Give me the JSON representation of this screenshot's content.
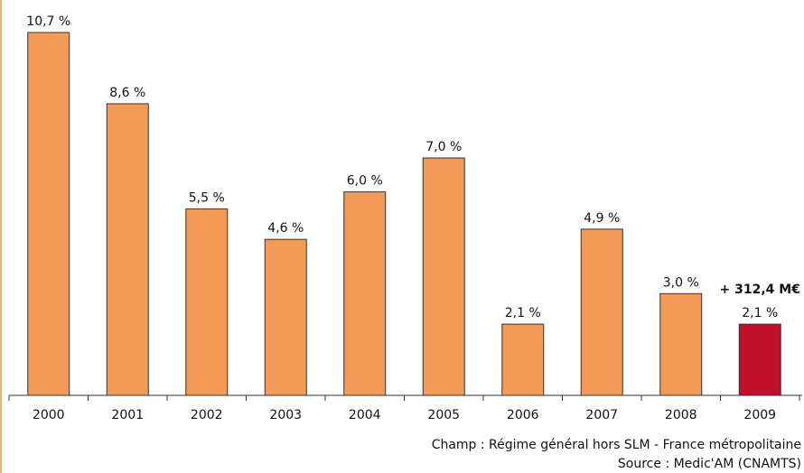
{
  "chart_data": {
    "type": "bar",
    "categories": [
      "2000",
      "2001",
      "2002",
      "2003",
      "2004",
      "2005",
      "2006",
      "2007",
      "2008",
      "2009"
    ],
    "values": [
      10.7,
      8.6,
      5.5,
      4.6,
      6.0,
      7.0,
      2.1,
      4.9,
      3.0,
      2.1
    ],
    "value_labels": [
      "10,7 %",
      "8,6 %",
      "5,5 %",
      "4,6 %",
      "6,0 %",
      "7,0 %",
      "2,1 %",
      "4,9 %",
      "3,0 %",
      "2,1 %"
    ],
    "colors": [
      "#f39a56",
      "#f39a56",
      "#f39a56",
      "#f39a56",
      "#f39a56",
      "#f39a56",
      "#f39a56",
      "#f39a56",
      "#f39a56",
      "#c10e2b"
    ],
    "annotation": "+ 312,4 M€",
    "notes": [
      "Champ : Régime général hors SLM - France métropolitaine",
      "Source : Medic'AM (CNAMTS)"
    ]
  }
}
